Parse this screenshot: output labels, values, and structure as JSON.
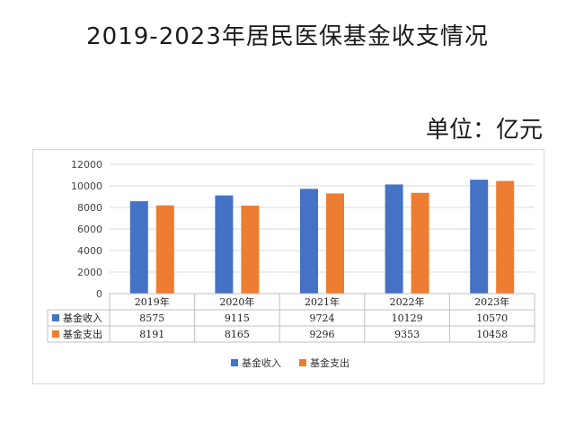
{
  "page": {
    "title": "2019-2023年居民医保基金收支情况",
    "unit": "单位：亿元"
  },
  "colors": {
    "income": "#4472C4",
    "expense": "#ED7D31",
    "grid": "#D9D9D9",
    "table_border": "#BFBFBF"
  },
  "chart_data": {
    "type": "bar",
    "title": "2019-2023年居民医保基金收支情况",
    "unit": "单位：亿元",
    "categories": [
      "2019年",
      "2020年",
      "2021年",
      "2022年",
      "2023年"
    ],
    "series": [
      {
        "name": "基金收入",
        "values": [
          8575,
          9115,
          9724,
          10129,
          10570
        ]
      },
      {
        "name": "基金支出",
        "values": [
          8191,
          8165,
          9296,
          9353,
          10458
        ]
      }
    ],
    "ylim": [
      0,
      12000
    ],
    "yticks": [
      0,
      2000,
      4000,
      6000,
      8000,
      10000,
      12000
    ],
    "grid": true,
    "legend_position": "bottom",
    "data_table": true
  }
}
